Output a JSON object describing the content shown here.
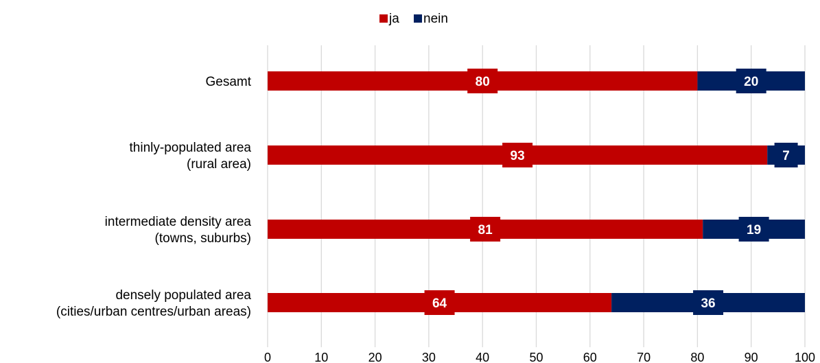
{
  "chart_data": {
    "type": "bar",
    "orientation": "horizontal",
    "stacked": true,
    "categories": [
      [
        "Gesamt"
      ],
      [
        "thinly-populated area",
        "(rural area)"
      ],
      [
        "intermediate density area",
        "(towns, suburbs)"
      ],
      [
        "densely populated area",
        "(cities/urban centres/urban areas)"
      ]
    ],
    "series": [
      {
        "name": "ja",
        "color": "#c00000",
        "values": [
          80,
          93,
          81,
          64
        ]
      },
      {
        "name": "nein",
        "color": "#002060",
        "values": [
          20,
          7,
          19,
          36
        ]
      }
    ],
    "xlim": [
      0,
      100
    ],
    "xticks": [
      0,
      10,
      20,
      30,
      40,
      50,
      60,
      70,
      80,
      90,
      100
    ],
    "grid": true,
    "legend_position": "top-center",
    "data_labels": true
  }
}
